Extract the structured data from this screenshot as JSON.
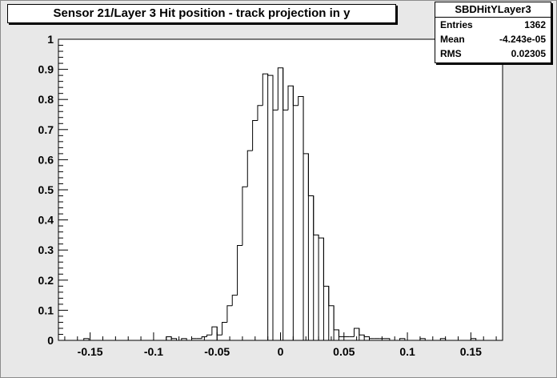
{
  "chart_data": {
    "type": "histogram",
    "title": "Sensor 21/Layer 3 Hit position - track projection in y",
    "stats": {
      "name": "SBDHitYLayer3",
      "rows": [
        {
          "label": "Entries",
          "value": "1362"
        },
        {
          "label": "Mean",
          "value": "-4.243e-05"
        },
        {
          "label": "RMS",
          "value": "0.02305"
        }
      ]
    },
    "xlim": [
      -0.175,
      0.175
    ],
    "ylim": [
      0,
      1
    ],
    "x_ticks": [
      -0.15,
      -0.1,
      -0.05,
      0,
      0.05,
      0.1,
      0.15
    ],
    "x_tick_labels": [
      "-0.15",
      "-0.1",
      "-0.05",
      "0",
      "0.05",
      "0.1",
      "0.15"
    ],
    "y_ticks": [
      0,
      0.1,
      0.2,
      0.3,
      0.4,
      0.5,
      0.6,
      0.7,
      0.8,
      0.9,
      1
    ],
    "y_tick_labels": [
      "0",
      "0.1",
      "0.2",
      "0.3",
      "0.4",
      "0.5",
      "0.6",
      "0.7",
      "0.8",
      "0.9",
      "1"
    ],
    "bins": [
      {
        "x0": -0.155,
        "x1": -0.151,
        "y": 0.006
      },
      {
        "x0": -0.09,
        "x1": -0.086,
        "y": 0.012
      },
      {
        "x0": -0.086,
        "x1": -0.082,
        "y": 0.006
      },
      {
        "x0": -0.078,
        "x1": -0.074,
        "y": 0.006
      },
      {
        "x0": -0.07,
        "x1": -0.066,
        "y": 0.006
      },
      {
        "x0": -0.066,
        "x1": -0.062,
        "y": 0.006
      },
      {
        "x0": -0.062,
        "x1": -0.058,
        "y": 0.012
      },
      {
        "x0": -0.058,
        "x1": -0.054,
        "y": 0.018
      },
      {
        "x0": -0.054,
        "x1": -0.05,
        "y": 0.045
      },
      {
        "x0": -0.05,
        "x1": -0.046,
        "y": 0.018
      },
      {
        "x0": -0.046,
        "x1": -0.042,
        "y": 0.06
      },
      {
        "x0": -0.042,
        "x1": -0.038,
        "y": 0.115
      },
      {
        "x0": -0.038,
        "x1": -0.034,
        "y": 0.15
      },
      {
        "x0": -0.034,
        "x1": -0.03,
        "y": 0.315
      },
      {
        "x0": -0.03,
        "x1": -0.026,
        "y": 0.51
      },
      {
        "x0": -0.026,
        "x1": -0.022,
        "y": 0.63
      },
      {
        "x0": -0.022,
        "x1": -0.018,
        "y": 0.73
      },
      {
        "x0": -0.018,
        "x1": -0.014,
        "y": 0.78
      },
      {
        "x0": -0.014,
        "x1": -0.01,
        "y": 0.885
      },
      {
        "x0": -0.01,
        "x1": -0.006,
        "y": 0.88
      },
      {
        "x0": -0.006,
        "x1": -0.002,
        "y": 0.765
      },
      {
        "x0": -0.002,
        "x1": 0.002,
        "y": 0.905
      },
      {
        "x0": 0.002,
        "x1": 0.006,
        "y": 0.765
      },
      {
        "x0": 0.006,
        "x1": 0.01,
        "y": 0.845
      },
      {
        "x0": 0.01,
        "x1": 0.014,
        "y": 0.78
      },
      {
        "x0": 0.014,
        "x1": 0.018,
        "y": 0.81
      },
      {
        "x0": 0.018,
        "x1": 0.022,
        "y": 0.62
      },
      {
        "x0": 0.022,
        "x1": 0.026,
        "y": 0.48
      },
      {
        "x0": 0.026,
        "x1": 0.03,
        "y": 0.35
      },
      {
        "x0": 0.03,
        "x1": 0.034,
        "y": 0.34
      },
      {
        "x0": 0.034,
        "x1": 0.038,
        "y": 0.18
      },
      {
        "x0": 0.038,
        "x1": 0.042,
        "y": 0.115
      },
      {
        "x0": 0.042,
        "x1": 0.046,
        "y": 0.035
      },
      {
        "x0": 0.046,
        "x1": 0.05,
        "y": 0.012
      },
      {
        "x0": 0.05,
        "x1": 0.054,
        "y": 0.012
      },
      {
        "x0": 0.054,
        "x1": 0.058,
        "y": 0.012
      },
      {
        "x0": 0.058,
        "x1": 0.062,
        "y": 0.04
      },
      {
        "x0": 0.062,
        "x1": 0.066,
        "y": 0.018
      },
      {
        "x0": 0.066,
        "x1": 0.07,
        "y": 0.012
      },
      {
        "x0": 0.07,
        "x1": 0.074,
        "y": 0.006
      },
      {
        "x0": 0.074,
        "x1": 0.078,
        "y": 0.006
      },
      {
        "x0": 0.078,
        "x1": 0.082,
        "y": 0.006
      },
      {
        "x0": 0.082,
        "x1": 0.086,
        "y": 0.006
      },
      {
        "x0": 0.094,
        "x1": 0.098,
        "y": 0.006
      },
      {
        "x0": 0.11,
        "x1": 0.114,
        "y": 0.006
      },
      {
        "x0": 0.126,
        "x1": 0.13,
        "y": 0.006
      },
      {
        "x0": 0.15,
        "x1": 0.154,
        "y": 0.006
      }
    ],
    "grid": false,
    "legend": "none",
    "colors": {
      "line": "#000000",
      "frame_bg": "#e8e8e8",
      "plot_bg": "#ffffff"
    }
  }
}
